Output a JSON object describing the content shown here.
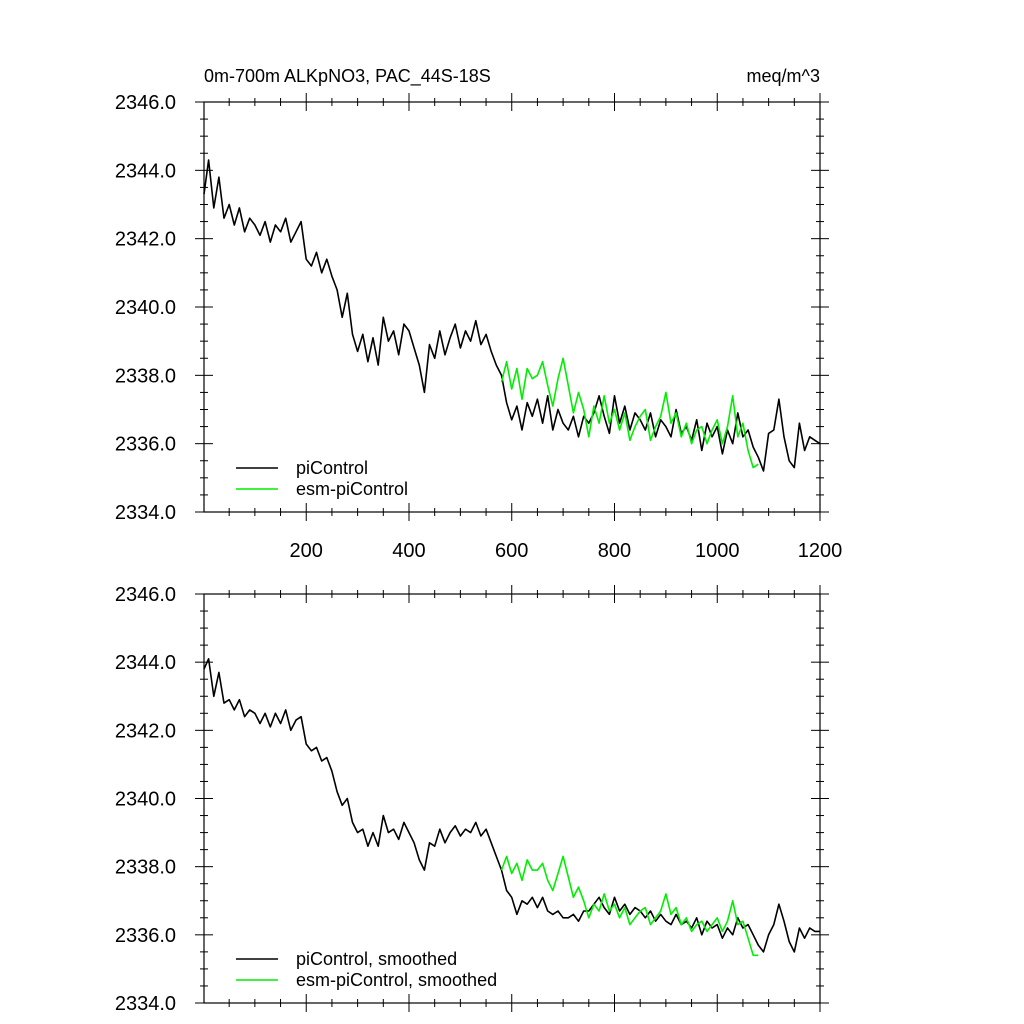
{
  "header": {
    "title": "0m-700m ALKpNO3, PAC_44S-18S",
    "units": "meq/m^3"
  },
  "colors": {
    "piControl": "#000000",
    "esm_piControl": "#00ee00"
  },
  "chart_data": [
    {
      "type": "line",
      "panel": "top",
      "title": "0m-700m ALKpNO3, PAC_44S-18S",
      "ylabel_right": "meq/m^3",
      "xlim": [
        1,
        1200
      ],
      "ylim": [
        2334.0,
        2346.0
      ],
      "xticks": [
        200,
        400,
        600,
        800,
        1000,
        1200
      ],
      "xtick_labels": [
        "200",
        "400",
        "600",
        "800",
        "1000",
        "1200"
      ],
      "yticks": [
        2334.0,
        2336.0,
        2338.0,
        2340.0,
        2342.0,
        2344.0,
        2346.0
      ],
      "ytick_labels": [
        "2334.0",
        "2336.0",
        "2338.0",
        "2340.0",
        "2342.0",
        "2344.0",
        "2346.0"
      ],
      "legend_position": "bottom-left",
      "series": [
        {
          "name": "piControl",
          "color": "#000000",
          "x": [
            1,
            10,
            20,
            30,
            40,
            50,
            60,
            70,
            80,
            90,
            100,
            110,
            120,
            130,
            140,
            150,
            160,
            170,
            180,
            190,
            200,
            210,
            220,
            230,
            240,
            250,
            260,
            270,
            280,
            290,
            300,
            310,
            320,
            330,
            340,
            350,
            360,
            370,
            380,
            390,
            400,
            410,
            420,
            430,
            440,
            450,
            460,
            470,
            480,
            490,
            500,
            510,
            520,
            530,
            540,
            550,
            560,
            570,
            580,
            590,
            600,
            610,
            620,
            630,
            640,
            650,
            660,
            670,
            680,
            690,
            700,
            710,
            720,
            730,
            740,
            750,
            760,
            770,
            780,
            790,
            800,
            810,
            820,
            830,
            840,
            850,
            860,
            870,
            880,
            890,
            900,
            910,
            920,
            930,
            940,
            950,
            960,
            970,
            980,
            990,
            1000,
            1010,
            1020,
            1030,
            1040,
            1050,
            1060,
            1070,
            1080,
            1090,
            1100,
            1110,
            1120,
            1130,
            1140,
            1150,
            1160,
            1170,
            1180,
            1190,
            1200
          ],
          "y": [
            2343.3,
            2344.3,
            2342.9,
            2343.8,
            2342.6,
            2343.0,
            2342.4,
            2342.9,
            2342.2,
            2342.6,
            2342.4,
            2342.1,
            2342.5,
            2341.9,
            2342.4,
            2342.2,
            2342.6,
            2341.9,
            2342.2,
            2342.5,
            2341.4,
            2341.2,
            2341.6,
            2341.0,
            2341.4,
            2340.9,
            2340.5,
            2339.7,
            2340.4,
            2339.2,
            2338.7,
            2339.2,
            2338.4,
            2339.1,
            2338.3,
            2339.7,
            2339.0,
            2339.3,
            2338.6,
            2339.5,
            2339.3,
            2338.8,
            2338.3,
            2337.5,
            2338.9,
            2338.5,
            2339.3,
            2338.6,
            2339.1,
            2339.5,
            2338.8,
            2339.3,
            2339.0,
            2339.6,
            2338.9,
            2339.2,
            2338.7,
            2338.3,
            2338.0,
            2337.2,
            2336.7,
            2337.1,
            2336.4,
            2337.2,
            2336.8,
            2337.3,
            2336.6,
            2337.4,
            2336.4,
            2337.0,
            2336.6,
            2336.4,
            2336.8,
            2336.2,
            2336.8,
            2336.6,
            2336.9,
            2337.4,
            2336.8,
            2336.3,
            2337.4,
            2336.6,
            2337.1,
            2336.4,
            2336.9,
            2336.7,
            2336.4,
            2336.9,
            2336.2,
            2336.7,
            2336.5,
            2336.2,
            2337.0,
            2336.3,
            2336.5,
            2336.1,
            2336.7,
            2335.8,
            2336.6,
            2336.2,
            2336.5,
            2335.7,
            2336.4,
            2336.0,
            2336.9,
            2336.2,
            2336.4,
            2335.9,
            2335.6,
            2335.2,
            2336.3,
            2336.4,
            2337.3,
            2336.2,
            2335.5,
            2335.3,
            2336.6,
            2335.8,
            2336.2,
            2336.1,
            2336.0
          ]
        },
        {
          "name": "esm-piControl",
          "color": "#00ee00",
          "x": [
            580,
            590,
            600,
            610,
            620,
            630,
            640,
            650,
            660,
            670,
            680,
            690,
            700,
            710,
            720,
            730,
            740,
            750,
            760,
            770,
            780,
            790,
            800,
            810,
            820,
            830,
            840,
            850,
            860,
            870,
            880,
            890,
            900,
            910,
            920,
            930,
            940,
            950,
            960,
            970,
            980,
            990,
            1000,
            1010,
            1020,
            1030,
            1040,
            1050,
            1060,
            1070,
            1080
          ],
          "y": [
            2337.8,
            2338.4,
            2337.6,
            2338.2,
            2337.3,
            2338.2,
            2337.9,
            2338.0,
            2338.4,
            2337.7,
            2337.1,
            2337.9,
            2338.5,
            2337.7,
            2336.9,
            2337.5,
            2337.0,
            2336.2,
            2337.1,
            2336.6,
            2337.4,
            2336.6,
            2337.0,
            2336.4,
            2336.9,
            2336.1,
            2336.5,
            2336.8,
            2337.0,
            2336.1,
            2336.5,
            2336.8,
            2337.5,
            2336.6,
            2336.9,
            2336.2,
            2336.6,
            2336.0,
            2336.4,
            2336.5,
            2336.0,
            2336.4,
            2336.7,
            2336.0,
            2336.5,
            2337.4,
            2336.2,
            2336.6,
            2335.8,
            2335.3,
            2335.4
          ]
        }
      ]
    },
    {
      "type": "line",
      "panel": "bottom",
      "xlim": [
        1,
        1200
      ],
      "ylim": [
        2334.0,
        2346.0
      ],
      "yticks": [
        2334.0,
        2336.0,
        2338.0,
        2340.0,
        2342.0,
        2344.0,
        2346.0
      ],
      "ytick_labels": [
        "2334.0",
        "2336.0",
        "2338.0",
        "2340.0",
        "2342.0",
        "2344.0",
        "2346.0"
      ],
      "legend_position": "bottom-left",
      "series": [
        {
          "name": "piControl, smoothed",
          "color": "#000000",
          "x": [
            1,
            10,
            20,
            30,
            40,
            50,
            60,
            70,
            80,
            90,
            100,
            110,
            120,
            130,
            140,
            150,
            160,
            170,
            180,
            190,
            200,
            210,
            220,
            230,
            240,
            250,
            260,
            270,
            280,
            290,
            300,
            310,
            320,
            330,
            340,
            350,
            360,
            370,
            380,
            390,
            400,
            410,
            420,
            430,
            440,
            450,
            460,
            470,
            480,
            490,
            500,
            510,
            520,
            530,
            540,
            550,
            560,
            570,
            580,
            590,
            600,
            610,
            620,
            630,
            640,
            650,
            660,
            670,
            680,
            690,
            700,
            710,
            720,
            730,
            740,
            750,
            760,
            770,
            780,
            790,
            800,
            810,
            820,
            830,
            840,
            850,
            860,
            870,
            880,
            890,
            900,
            910,
            920,
            930,
            940,
            950,
            960,
            970,
            980,
            990,
            1000,
            1010,
            1020,
            1030,
            1040,
            1050,
            1060,
            1070,
            1080,
            1090,
            1100,
            1110,
            1120,
            1130,
            1140,
            1150,
            1160,
            1170,
            1180,
            1190,
            1200
          ],
          "y": [
            2343.8,
            2344.1,
            2343.0,
            2343.7,
            2342.8,
            2342.9,
            2342.6,
            2342.9,
            2342.4,
            2342.6,
            2342.5,
            2342.2,
            2342.5,
            2342.1,
            2342.5,
            2342.2,
            2342.6,
            2342.0,
            2342.3,
            2342.4,
            2341.6,
            2341.4,
            2341.5,
            2341.1,
            2341.2,
            2340.8,
            2340.2,
            2339.8,
            2340.0,
            2339.3,
            2339.0,
            2339.1,
            2338.6,
            2339.0,
            2338.6,
            2339.5,
            2339.0,
            2339.1,
            2338.8,
            2339.3,
            2339.0,
            2338.7,
            2338.2,
            2337.9,
            2338.7,
            2338.6,
            2339.1,
            2338.7,
            2339.0,
            2339.2,
            2338.9,
            2339.1,
            2339.0,
            2339.3,
            2338.9,
            2339.1,
            2338.7,
            2338.3,
            2337.9,
            2337.3,
            2337.1,
            2336.6,
            2337.0,
            2336.9,
            2337.1,
            2336.8,
            2337.1,
            2336.7,
            2336.6,
            2336.7,
            2336.5,
            2336.5,
            2336.6,
            2336.4,
            2336.7,
            2336.7,
            2336.9,
            2337.1,
            2336.8,
            2336.6,
            2337.1,
            2336.7,
            2336.9,
            2336.6,
            2336.8,
            2336.7,
            2336.5,
            2336.7,
            2336.4,
            2336.6,
            2336.4,
            2336.3,
            2336.6,
            2336.3,
            2336.4,
            2336.2,
            2336.5,
            2336.0,
            2336.4,
            2336.2,
            2336.3,
            2335.9,
            2336.2,
            2336.0,
            2336.5,
            2336.2,
            2336.3,
            2336.0,
            2335.7,
            2335.5,
            2336.0,
            2336.3,
            2336.9,
            2336.4,
            2335.8,
            2335.5,
            2336.2,
            2335.9,
            2336.2,
            2336.1,
            2336.1
          ]
        },
        {
          "name": "esm-piControl, smoothed",
          "color": "#00ee00",
          "x": [
            580,
            590,
            600,
            610,
            620,
            630,
            640,
            650,
            660,
            670,
            680,
            690,
            700,
            710,
            720,
            730,
            740,
            750,
            760,
            770,
            780,
            790,
            800,
            810,
            820,
            830,
            840,
            850,
            860,
            870,
            880,
            890,
            900,
            910,
            920,
            930,
            940,
            950,
            960,
            970,
            980,
            990,
            1000,
            1010,
            1020,
            1030,
            1040,
            1050,
            1060,
            1070,
            1080
          ],
          "y": [
            2337.9,
            2338.3,
            2337.8,
            2338.1,
            2337.6,
            2338.2,
            2337.9,
            2337.9,
            2338.1,
            2337.6,
            2337.3,
            2337.8,
            2338.3,
            2337.7,
            2337.1,
            2337.4,
            2337.0,
            2336.5,
            2336.9,
            2336.7,
            2337.2,
            2336.7,
            2336.9,
            2336.5,
            2336.8,
            2336.3,
            2336.5,
            2336.7,
            2336.8,
            2336.3,
            2336.5,
            2336.7,
            2337.2,
            2336.6,
            2336.8,
            2336.3,
            2336.5,
            2336.1,
            2336.3,
            2336.4,
            2336.1,
            2336.3,
            2336.5,
            2336.1,
            2336.4,
            2337.0,
            2336.3,
            2336.4,
            2335.9,
            2335.4,
            2335.4
          ]
        }
      ]
    }
  ]
}
